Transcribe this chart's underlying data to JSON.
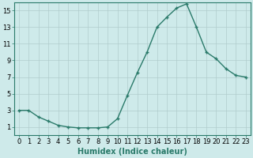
{
  "x": [
    0,
    1,
    2,
    3,
    4,
    5,
    6,
    7,
    8,
    9,
    10,
    11,
    12,
    13,
    14,
    15,
    16,
    17,
    18,
    19,
    20,
    21,
    22,
    23
  ],
  "y": [
    3,
    3,
    2.2,
    1.7,
    1.2,
    1.0,
    0.9,
    0.9,
    0.9,
    1.0,
    2.0,
    4.8,
    7.5,
    10.0,
    13.0,
    14.2,
    15.3,
    15.8,
    13.0,
    10.0,
    9.2,
    8.0,
    7.2,
    7.0
  ],
  "line_color": "#2a7a6a",
  "marker": "+",
  "marker_size": 3,
  "marker_linewidth": 1.0,
  "linewidth": 1.0,
  "bg_color": "#ceeaea",
  "grid_color": "#b0cccc",
  "xlabel": "Humidex (Indice chaleur)",
  "xlabel_fontsize": 7,
  "tick_fontsize": 6,
  "ylim": [
    0,
    16
  ],
  "yticks": [
    1,
    3,
    5,
    7,
    9,
    11,
    13,
    15
  ],
  "xlim": [
    -0.5,
    23.5
  ],
  "xticks": [
    0,
    1,
    2,
    3,
    4,
    5,
    6,
    7,
    8,
    9,
    10,
    11,
    12,
    13,
    14,
    15,
    16,
    17,
    18,
    19,
    20,
    21,
    22,
    23
  ]
}
